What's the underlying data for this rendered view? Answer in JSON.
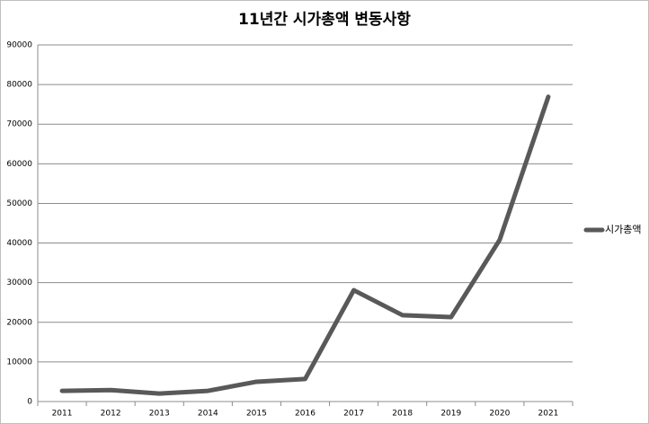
{
  "chart_data": {
    "type": "line",
    "title": "11년간 시가총액 변동사항",
    "categories": [
      "2011",
      "2012",
      "2013",
      "2014",
      "2015",
      "2016",
      "2017",
      "2018",
      "2019",
      "2020",
      "2021"
    ],
    "series": [
      {
        "name": "시가총액",
        "color": "#595959",
        "values": [
          2700,
          2900,
          2000,
          2700,
          5000,
          5700,
          28100,
          21800,
          21300,
          40800,
          76900
        ]
      }
    ],
    "ylim": [
      0,
      90000
    ],
    "yticks": [
      0,
      10000,
      20000,
      30000,
      40000,
      50000,
      60000,
      70000,
      80000,
      90000
    ],
    "grid": true,
    "legend": "right"
  }
}
